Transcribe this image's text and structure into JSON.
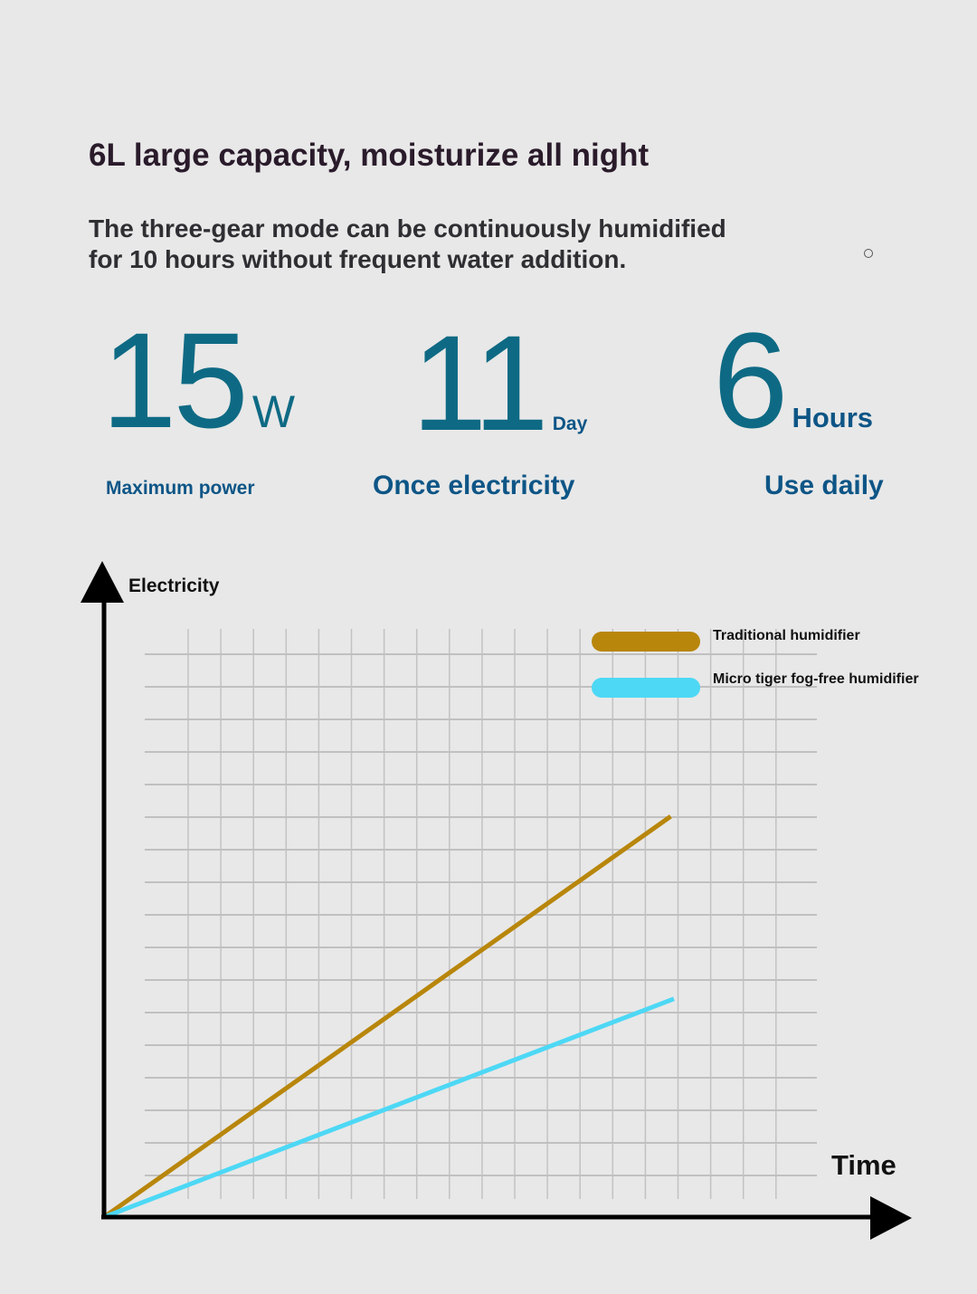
{
  "header": {
    "title": "6L large capacity, moisturize all night",
    "subtitle_line1": "The three-gear mode can be continuously humidified",
    "subtitle_line2": "for 10 hours without frequent water addition."
  },
  "stats": [
    {
      "value": "15",
      "unit": "W",
      "label": "Maximum power"
    },
    {
      "value": "11",
      "unit": "Day",
      "label": "Once electricity"
    },
    {
      "value": "6",
      "unit": "Hours",
      "label": "Use daily"
    }
  ],
  "colors": {
    "accent": "#0e6a84",
    "label": "#0d5586",
    "traditional": "#b8860b",
    "micro": "#4dd8f5"
  },
  "chart_data": {
    "type": "line",
    "title": "",
    "xlabel": "Time",
    "ylabel": "Electricity",
    "xlim": [
      0,
      22
    ],
    "ylim": [
      0,
      17.5
    ],
    "grid": true,
    "legend_position": "top-right",
    "series": [
      {
        "name": "Traditional humidifier",
        "color": "#b8860b",
        "x": [
          0,
          17.4
        ],
        "y": [
          0,
          12.3
        ]
      },
      {
        "name": "Micro tiger fog-free humidifier",
        "color": "#4dd8f5",
        "x": [
          0,
          17.5
        ],
        "y": [
          0,
          6.7
        ]
      }
    ]
  }
}
